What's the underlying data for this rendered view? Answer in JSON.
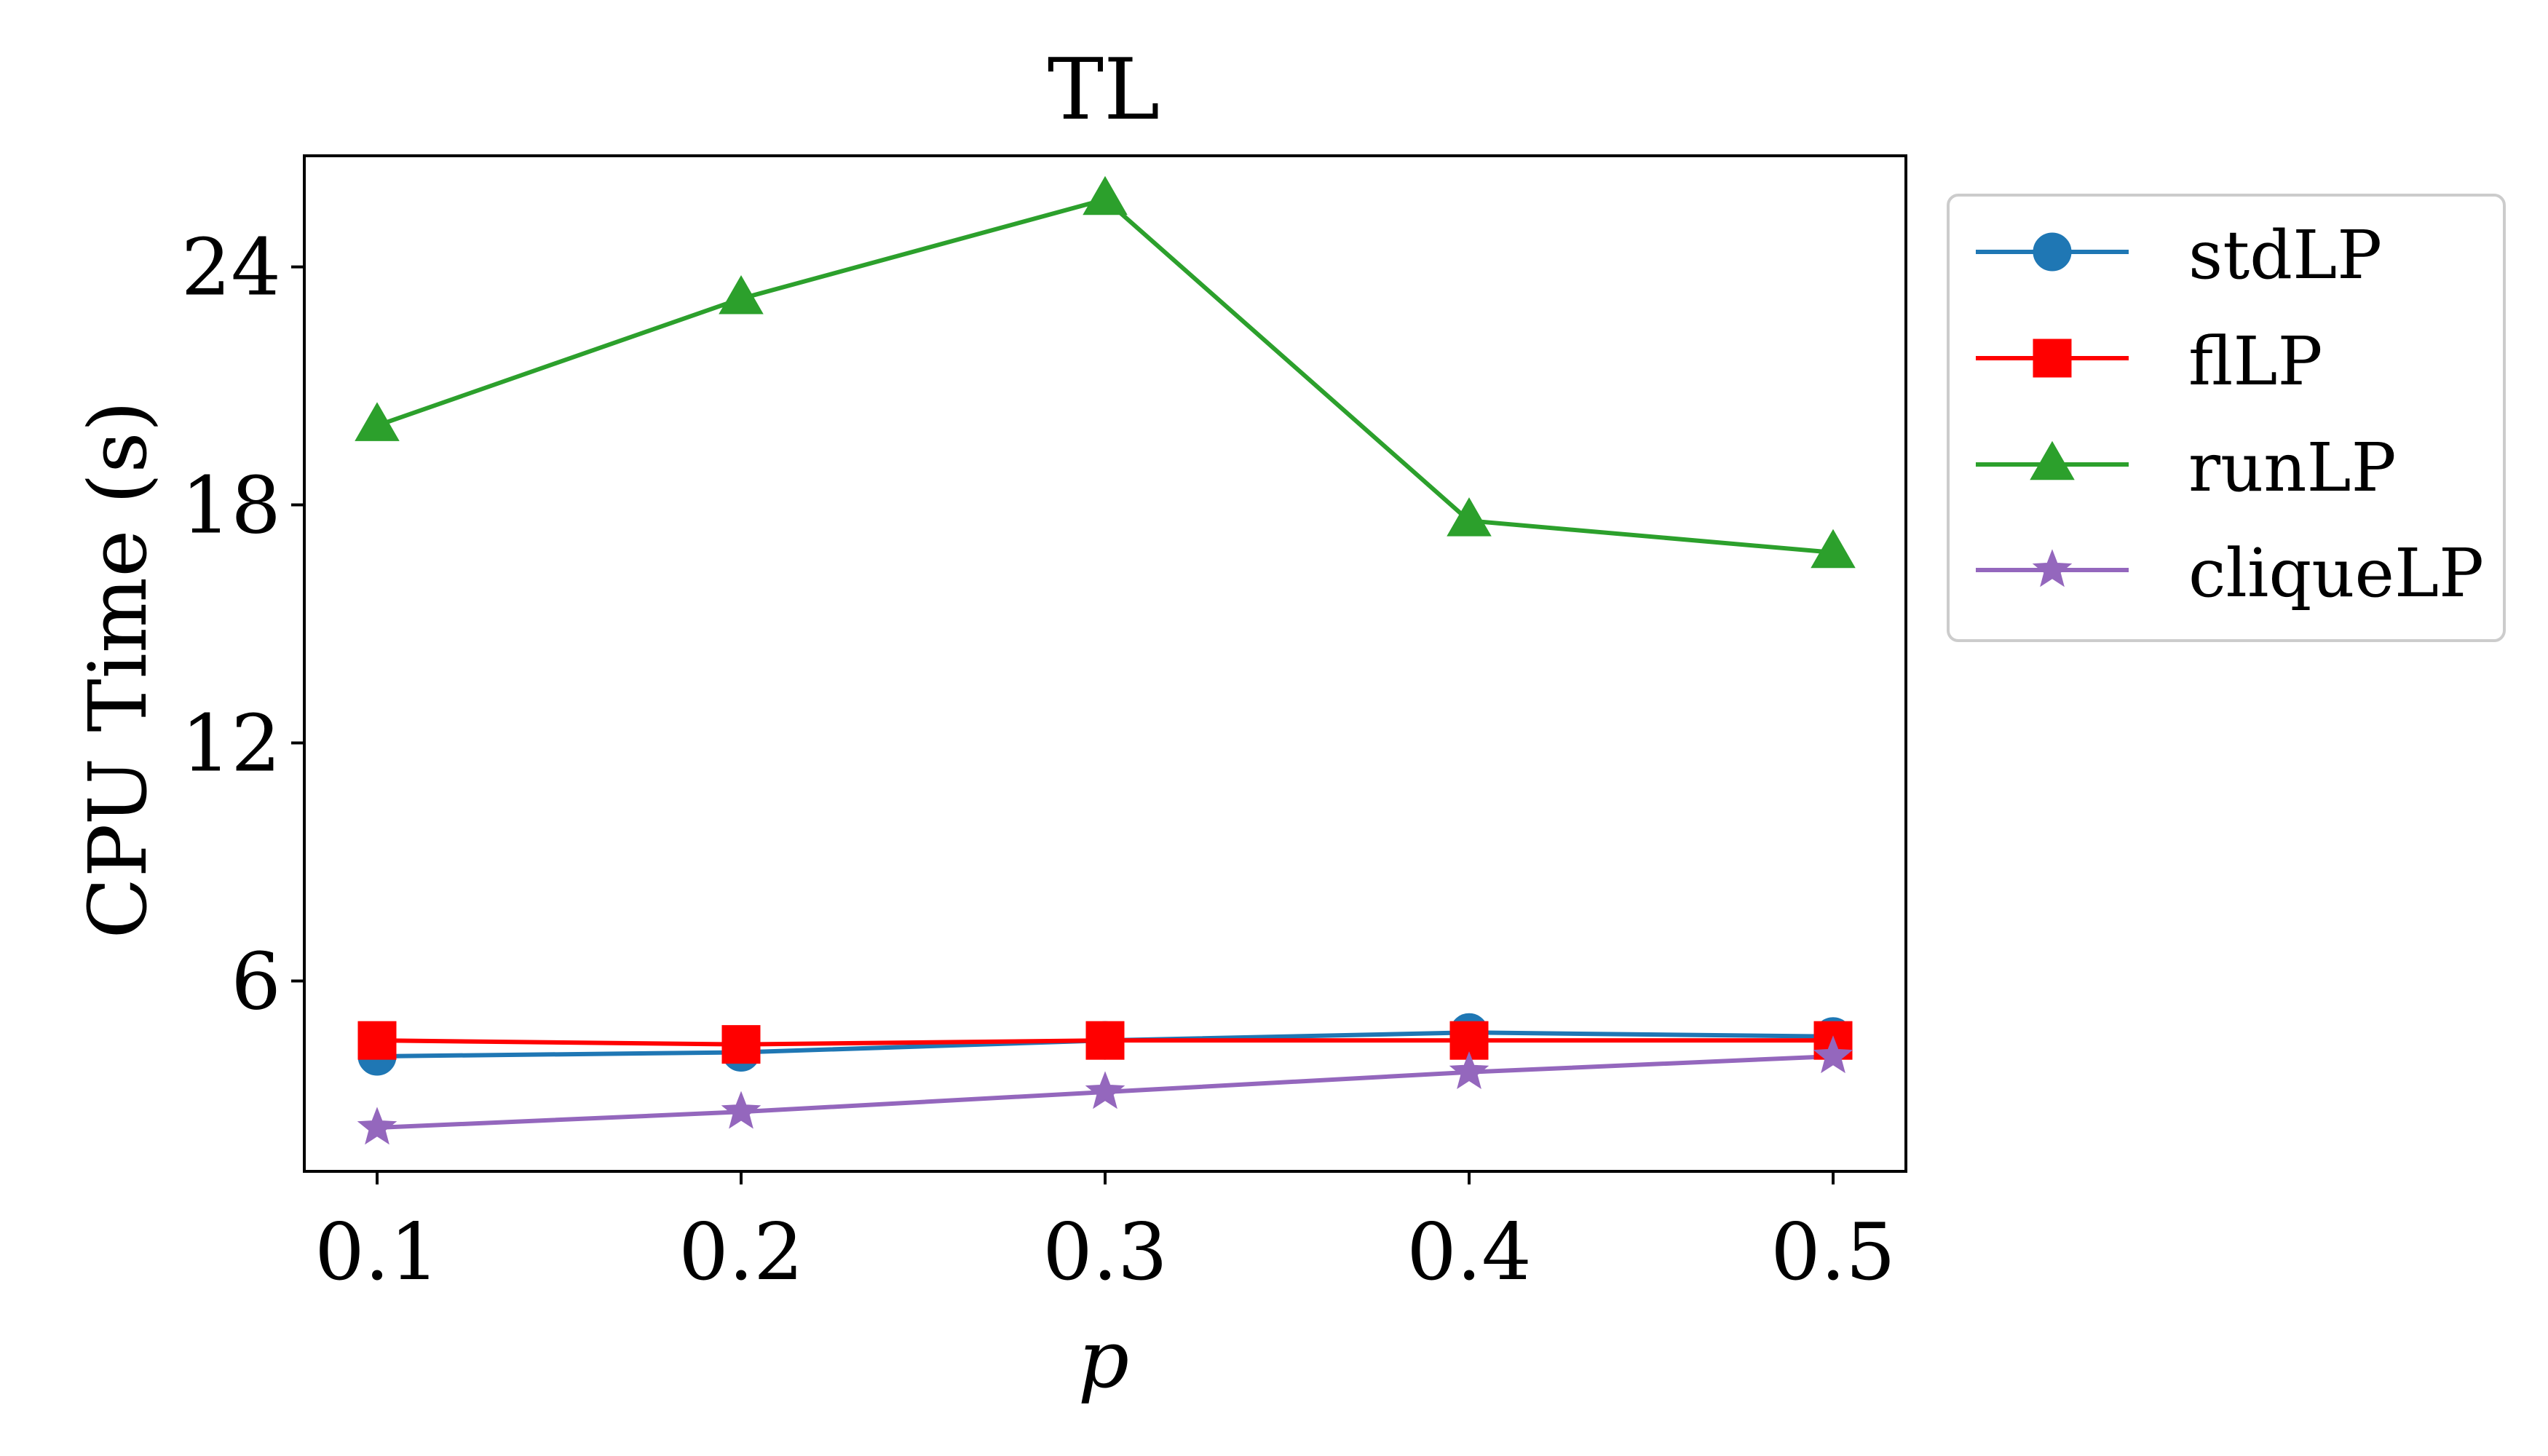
{
  "chart_data": {
    "type": "line",
    "title": "TL",
    "xlabel": "p",
    "ylabel": "CPU Time (s)",
    "x": [
      0.1,
      0.2,
      0.3,
      0.4,
      0.5
    ],
    "x_tick_labels": [
      "0.1",
      "0.2",
      "0.3",
      "0.4",
      "0.5"
    ],
    "xlim": [
      0.08,
      0.52
    ],
    "ylim": [
      1.2,
      26.8
    ],
    "y_ticks": [
      6,
      12,
      18,
      24
    ],
    "y_tick_labels": [
      "6",
      "12",
      "18",
      "24"
    ],
    "grid": false,
    "legend_position": "outside-right-top",
    "series": [
      {
        "name": "stdLP",
        "marker": "circle",
        "color": "#1f77b4",
        "values": [
          4.1,
          4.2,
          4.5,
          4.7,
          4.6
        ]
      },
      {
        "name": "flLP",
        "marker": "square",
        "color": "#ff0000",
        "values": [
          4.5,
          4.4,
          4.5,
          4.5,
          4.5
        ]
      },
      {
        "name": "runLP",
        "marker": "triangle",
        "color": "#2ca02c",
        "values": [
          20.0,
          23.2,
          25.7,
          17.6,
          16.8
        ]
      },
      {
        "name": "cliqueLP",
        "marker": "star",
        "color": "#9467bd",
        "values": [
          2.3,
          2.7,
          3.2,
          3.7,
          4.1
        ]
      }
    ]
  }
}
